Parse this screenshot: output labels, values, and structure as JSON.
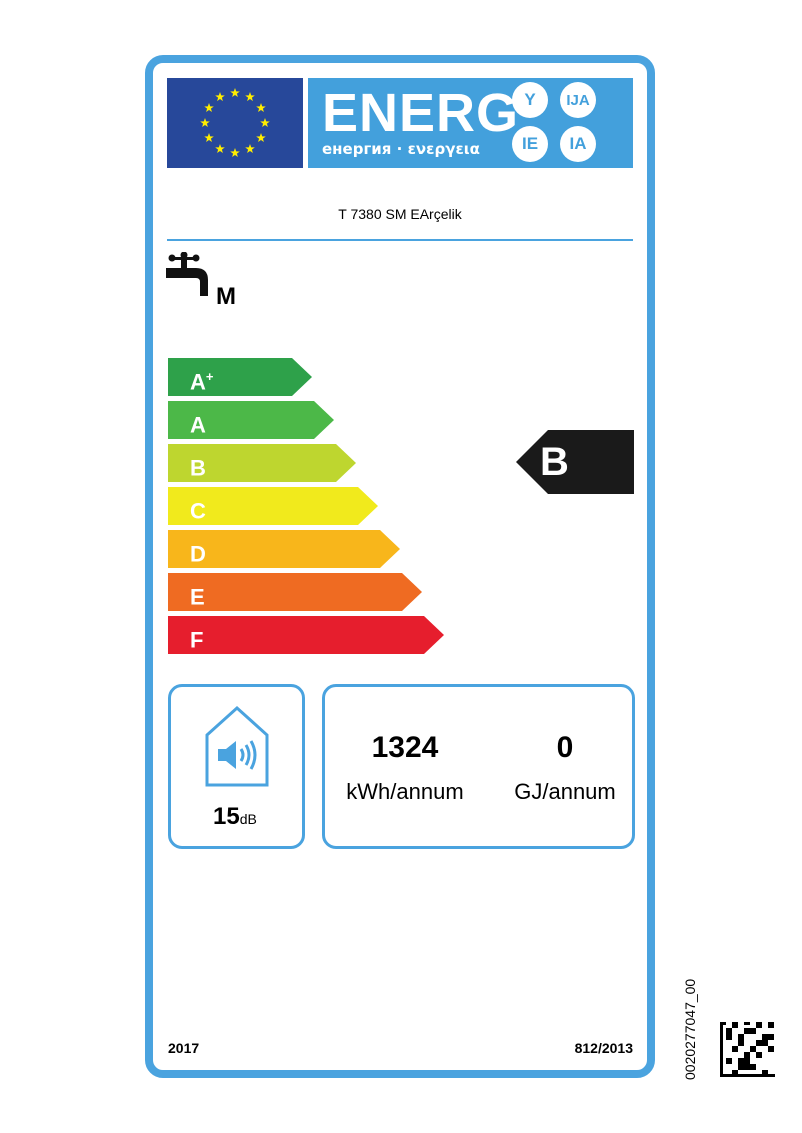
{
  "header": {
    "energ": "ENERG",
    "subtitle": "енергия · ενεργεια",
    "languages": [
      "Y",
      "IJA",
      "IE",
      "IA"
    ]
  },
  "model": "T 7380 SM EArçelik",
  "load_profile": "M",
  "scale": [
    {
      "label": "A",
      "sup": "+",
      "color": "#2ea14a"
    },
    {
      "label": "A",
      "sup": "",
      "color": "#4cb848"
    },
    {
      "label": "B",
      "sup": "",
      "color": "#bed62f"
    },
    {
      "label": "C",
      "sup": "",
      "color": "#f1ea1c"
    },
    {
      "label": "D",
      "sup": "",
      "color": "#f8b61b"
    },
    {
      "label": "E",
      "sup": "",
      "color": "#ef6b22"
    },
    {
      "label": "F",
      "sup": "",
      "color": "#e61e2d"
    }
  ],
  "rating": "B",
  "sound": {
    "value": "15",
    "unit": "dB",
    "icon": "speaker-house-icon"
  },
  "electricity": {
    "value": "1324",
    "unit": "kWh/annum"
  },
  "fuel": {
    "value": "0",
    "unit": "GJ/annum"
  },
  "footer": {
    "year": "2017",
    "regulation": "812/2013"
  },
  "code": "0020277047_00"
}
